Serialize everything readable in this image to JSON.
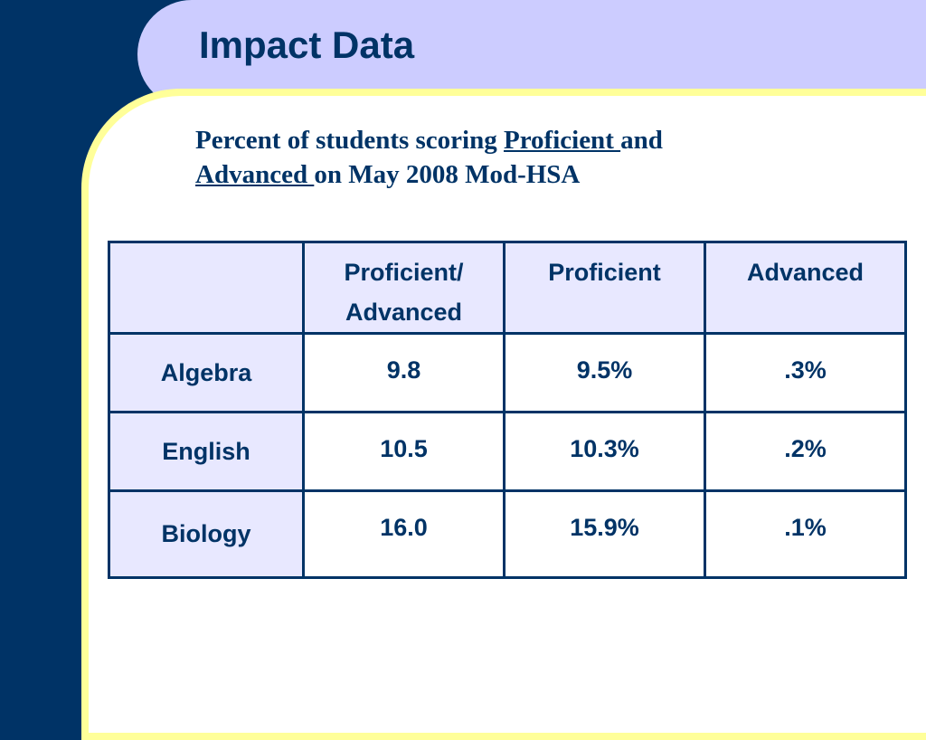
{
  "slide": {
    "title": "Impact Data",
    "subtitle": {
      "part1": "Percent of students scoring ",
      "proficient": "Proficient ",
      "part2": "and",
      "advanced": "Advanced ",
      "part3": "on May 2008 Mod-HSA"
    }
  },
  "table": {
    "headers": [
      "",
      "Proficient/ Advanced",
      "Proficient",
      "Advanced"
    ],
    "header_prof_adv_line1": "Proficient/",
    "header_prof_adv_line2": "Advanced",
    "rows": [
      {
        "subject": "Algebra",
        "proficient_advanced": "9.8",
        "proficient": "9.5%",
        "advanced": ".3%"
      },
      {
        "subject": "English",
        "proficient_advanced": "10.5",
        "proficient": "10.3%",
        "advanced": ".2%"
      },
      {
        "subject": "Biology",
        "proficient_advanced": "16.0",
        "proficient": "15.9%",
        "advanced": ".1%"
      }
    ]
  },
  "colors": {
    "navy": "#003366",
    "title_band": "#ccccff",
    "panel_border": "#ffff99",
    "header_cell": "#e8e8ff"
  }
}
